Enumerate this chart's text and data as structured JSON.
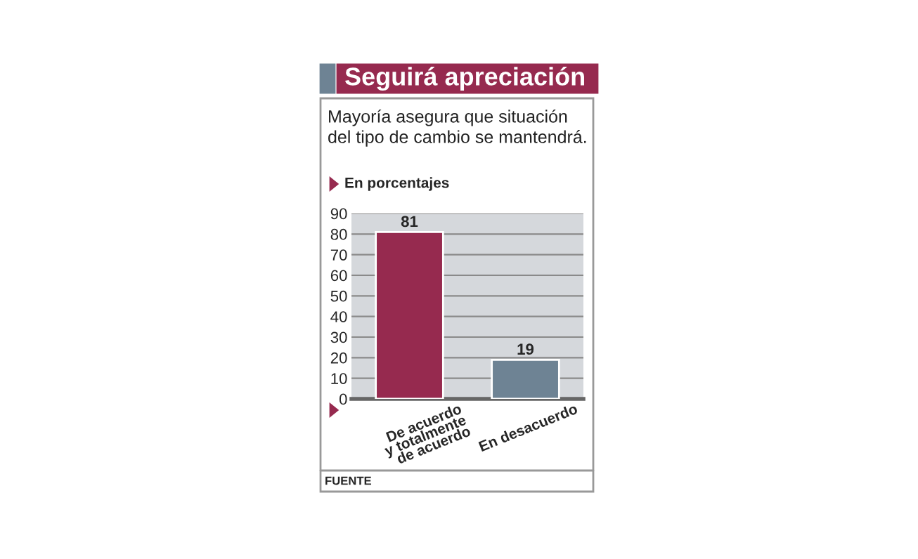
{
  "chart_data": {
    "type": "bar",
    "title": "Seguirá apreciación",
    "subtitle": "Mayoría asegura que situación\ndel tipo de cambio se mantendrá.",
    "ylabel": "En porcentajes",
    "categories": [
      "De acuerdo\ny totalmente\nde acuerdo",
      "En desacuerdo"
    ],
    "values": [
      81,
      19
    ],
    "colors": [
      "#962a4f",
      "#6e8394"
    ],
    "ylim": [
      0,
      90
    ],
    "yticks": [
      0,
      10,
      20,
      30,
      40,
      50,
      60,
      70,
      80,
      90
    ],
    "grid": "y",
    "data_labels": true,
    "annotations": [
      "FUENTE"
    ]
  }
}
